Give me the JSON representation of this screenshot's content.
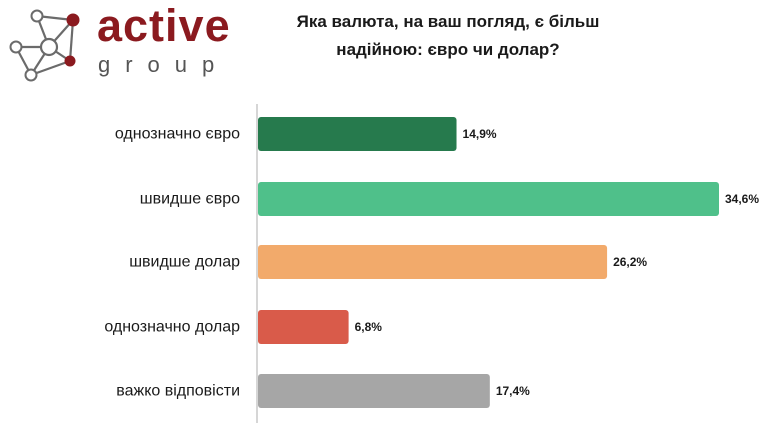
{
  "logo": {
    "brand": "active",
    "sub": "group",
    "colors": {
      "line": "#6b6b6b",
      "node_red": "#8b1a1f",
      "node_grey": "#a0a0a0"
    }
  },
  "chart_data": {
    "type": "bar",
    "orientation": "horizontal",
    "title": "Яка валюта, на ваш погляд, є більш надійною: євро чи долар?",
    "title_lines": [
      "Яка валюта, на ваш погляд, є більш",
      "надійною: євро чи долар?"
    ],
    "categories": [
      "однозначно євро",
      "швидше євро",
      "швидше долар",
      "однозначно долар",
      "важко відповісти"
    ],
    "values": [
      14.9,
      34.6,
      26.2,
      6.8,
      17.4
    ],
    "value_labels": [
      "14,9%",
      "34,6%",
      "26,2%",
      "6,8%",
      "17,4%"
    ],
    "colors": [
      "#267a4d",
      "#4fc08a",
      "#f2aa6b",
      "#d95b4a",
      "#a6a6a6"
    ],
    "xlim": [
      0,
      34.6
    ],
    "xlabel": "",
    "ylabel": "",
    "grid": false,
    "legend": "none"
  }
}
